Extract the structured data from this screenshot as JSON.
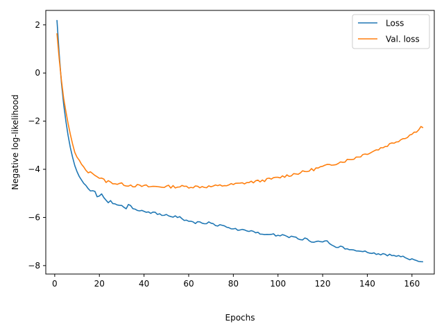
{
  "chart_data": {
    "type": "line",
    "title": "",
    "xlabel": "Epochs",
    "ylabel": "Negative log-likelihood",
    "xlim": [
      -4,
      170
    ],
    "ylim": [
      -8.35,
      2.6
    ],
    "xticks": [
      0,
      20,
      40,
      60,
      80,
      100,
      120,
      140,
      160
    ],
    "yticks": [
      -8,
      -6,
      -4,
      -2,
      0,
      2
    ],
    "xtick_labels": [
      "0",
      "20",
      "40",
      "60",
      "80",
      "100",
      "120",
      "140",
      "160"
    ],
    "ytick_labels": [
      "−8",
      "−6",
      "−4",
      "−2",
      "0",
      "2"
    ],
    "grid": false,
    "legend_position": "top-right",
    "series": [
      {
        "name": "Loss",
        "color": "#1f77b4",
        "x": [
          1,
          2,
          3,
          4,
          5,
          6,
          7,
          8,
          9,
          10,
          11,
          12,
          13,
          14,
          15,
          16,
          17,
          18,
          19,
          20,
          21,
          22,
          23,
          24,
          25,
          26,
          27,
          28,
          29,
          30,
          31,
          32,
          33,
          34,
          35,
          36,
          37,
          38,
          39,
          40,
          41,
          42,
          43,
          44,
          45,
          46,
          47,
          48,
          49,
          50,
          51,
          52,
          53,
          54,
          55,
          56,
          57,
          58,
          59,
          60,
          61,
          62,
          63,
          64,
          65,
          66,
          67,
          68,
          69,
          70,
          71,
          72,
          73,
          74,
          75,
          76,
          77,
          78,
          79,
          80,
          81,
          82,
          83,
          84,
          85,
          86,
          87,
          88,
          89,
          90,
          91,
          92,
          93,
          94,
          95,
          96,
          97,
          98,
          99,
          100,
          101,
          102,
          103,
          104,
          105,
          106,
          107,
          108,
          109,
          110,
          111,
          112,
          113,
          114,
          115,
          116,
          117,
          118,
          119,
          120,
          121,
          122,
          123,
          124,
          125,
          126,
          127,
          128,
          129,
          130,
          131,
          132,
          133,
          134,
          135,
          136,
          137,
          138,
          139,
          140,
          141,
          142,
          143,
          144,
          145,
          146,
          147,
          148,
          149,
          150,
          151,
          152,
          153,
          154,
          155,
          156,
          157,
          158,
          159,
          160,
          161,
          162,
          163,
          164,
          165
        ],
        "values": [
          2.2,
          0.8,
          -0.4,
          -1.3,
          -2.0,
          -2.6,
          -3.1,
          -3.5,
          -3.85,
          -4.1,
          -4.3,
          -4.45,
          -4.55,
          -4.65,
          -4.8,
          -4.9,
          -4.85,
          -4.95,
          -5.15,
          -5.1,
          -5.0,
          -5.2,
          -5.3,
          -5.35,
          -5.3,
          -5.4,
          -5.45,
          -5.45,
          -5.5,
          -5.5,
          -5.55,
          -5.6,
          -5.5,
          -5.55,
          -5.6,
          -5.65,
          -5.75,
          -5.7,
          -5.7,
          -5.75,
          -5.8,
          -5.75,
          -5.8,
          -5.82,
          -5.78,
          -5.85,
          -5.85,
          -5.9,
          -5.88,
          -5.9,
          -5.92,
          -5.95,
          -5.95,
          -5.97,
          -5.98,
          -6.0,
          -6.05,
          -6.1,
          -6.12,
          -6.15,
          -6.18,
          -6.2,
          -6.22,
          -6.15,
          -6.18,
          -6.2,
          -6.22,
          -6.25,
          -6.2,
          -6.25,
          -6.3,
          -6.32,
          -6.35,
          -6.3,
          -6.32,
          -6.38,
          -6.4,
          -6.42,
          -6.45,
          -6.45,
          -6.48,
          -6.5,
          -6.5,
          -6.52,
          -6.55,
          -6.6,
          -6.62,
          -6.58,
          -6.6,
          -6.65,
          -6.62,
          -6.65,
          -6.68,
          -6.7,
          -6.68,
          -6.7,
          -6.72,
          -6.7,
          -6.75,
          -6.78,
          -6.72,
          -6.7,
          -6.75,
          -6.78,
          -6.8,
          -6.82,
          -6.8,
          -6.85,
          -6.9,
          -6.92,
          -6.9,
          -6.88,
          -6.92,
          -6.95,
          -6.98,
          -7.0,
          -7.02,
          -7.0,
          -7.02,
          -7.05,
          -6.95,
          -7.0,
          -7.05,
          -7.1,
          -7.15,
          -7.2,
          -7.25,
          -7.22,
          -7.25,
          -7.28,
          -7.3,
          -7.3,
          -7.32,
          -7.35,
          -7.35,
          -7.38,
          -7.38,
          -7.4,
          -7.42,
          -7.42,
          -7.45,
          -7.45,
          -7.48,
          -7.5,
          -7.5,
          -7.52,
          -7.5,
          -7.52,
          -7.55,
          -7.55,
          -7.58,
          -7.6,
          -7.6,
          -7.62,
          -7.65,
          -7.62,
          -7.65,
          -7.7,
          -7.72,
          -7.75,
          -7.72,
          -7.75,
          -7.8,
          -7.82,
          -7.8
        ],
        "noise_seed": 7,
        "noise_amp": 0.045
      },
      {
        "name": "Val. loss",
        "color": "#ff7f0e",
        "x": [
          1,
          2,
          3,
          4,
          5,
          6,
          7,
          8,
          9,
          10,
          11,
          12,
          13,
          14,
          15,
          16,
          17,
          18,
          19,
          20,
          21,
          22,
          23,
          24,
          25,
          26,
          27,
          28,
          29,
          30,
          31,
          32,
          33,
          34,
          35,
          36,
          37,
          38,
          39,
          40,
          41,
          42,
          43,
          44,
          45,
          46,
          47,
          48,
          49,
          50,
          51,
          52,
          53,
          54,
          55,
          56,
          57,
          58,
          59,
          60,
          61,
          62,
          63,
          64,
          65,
          66,
          67,
          68,
          69,
          70,
          71,
          72,
          73,
          74,
          75,
          76,
          77,
          78,
          79,
          80,
          81,
          82,
          83,
          84,
          85,
          86,
          87,
          88,
          89,
          90,
          91,
          92,
          93,
          94,
          95,
          96,
          97,
          98,
          99,
          100,
          101,
          102,
          103,
          104,
          105,
          106,
          107,
          108,
          109,
          110,
          111,
          112,
          113,
          114,
          115,
          116,
          117,
          118,
          119,
          120,
          121,
          122,
          123,
          124,
          125,
          126,
          127,
          128,
          129,
          130,
          131,
          132,
          133,
          134,
          135,
          136,
          137,
          138,
          139,
          140,
          141,
          142,
          143,
          144,
          145,
          146,
          147,
          148,
          149,
          150,
          151,
          152,
          153,
          154,
          155,
          156,
          157,
          158,
          159,
          160,
          161,
          162,
          163,
          164,
          165
        ],
        "values": [
          1.65,
          0.6,
          -0.3,
          -1.05,
          -1.6,
          -2.1,
          -2.55,
          -2.95,
          -3.3,
          -3.5,
          -3.65,
          -3.8,
          -3.95,
          -4.05,
          -4.1,
          -4.15,
          -4.15,
          -4.2,
          -4.3,
          -4.35,
          -4.4,
          -4.45,
          -4.5,
          -4.5,
          -4.55,
          -4.55,
          -4.58,
          -4.6,
          -4.6,
          -4.62,
          -4.62,
          -4.65,
          -4.65,
          -4.65,
          -4.68,
          -4.68,
          -4.68,
          -4.7,
          -4.7,
          -4.7,
          -4.7,
          -4.72,
          -4.72,
          -4.72,
          -4.72,
          -4.72,
          -4.72,
          -4.72,
          -4.72,
          -4.72,
          -4.72,
          -4.72,
          -4.72,
          -4.72,
          -4.72,
          -4.72,
          -4.72,
          -4.72,
          -4.72,
          -4.72,
          -4.72,
          -4.72,
          -4.72,
          -4.72,
          -4.72,
          -4.72,
          -4.72,
          -4.72,
          -4.72,
          -4.72,
          -4.7,
          -4.7,
          -4.7,
          -4.68,
          -4.68,
          -4.66,
          -4.66,
          -4.65,
          -4.64,
          -4.63,
          -4.62,
          -4.6,
          -4.6,
          -4.58,
          -4.57,
          -4.55,
          -4.55,
          -4.53,
          -4.52,
          -4.5,
          -4.5,
          -4.48,
          -4.47,
          -4.45,
          -4.43,
          -4.42,
          -4.4,
          -4.38,
          -4.37,
          -4.35,
          -4.33,
          -4.3,
          -4.28,
          -4.26,
          -4.25,
          -4.22,
          -4.2,
          -4.18,
          -4.16,
          -4.14,
          -4.12,
          -4.1,
          -4.08,
          -4.05,
          -4.02,
          -4.0,
          -3.97,
          -3.95,
          -3.92,
          -3.9,
          -3.87,
          -3.85,
          -3.82,
          -3.8,
          -3.77,
          -3.75,
          -3.72,
          -3.7,
          -3.67,
          -3.65,
          -3.62,
          -3.6,
          -3.57,
          -3.54,
          -3.5,
          -3.47,
          -3.44,
          -3.4,
          -3.37,
          -3.33,
          -3.3,
          -3.27,
          -3.23,
          -3.2,
          -3.16,
          -3.12,
          -3.08,
          -3.05,
          -3.0,
          -2.96,
          -2.92,
          -2.88,
          -2.84,
          -2.8,
          -2.76,
          -2.72,
          -2.68,
          -2.63,
          -2.58,
          -2.53,
          -2.48,
          -2.4,
          -2.32,
          -2.24,
          -2.25
        ],
        "noise_seed": 13,
        "noise_amp": 0.06
      }
    ]
  }
}
